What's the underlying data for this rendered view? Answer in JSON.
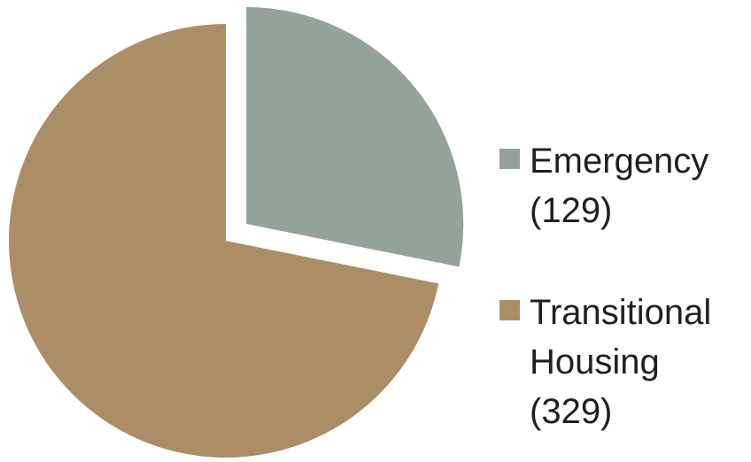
{
  "chart_data": {
    "type": "pie",
    "categories": [
      "Emergency",
      "Transitional Housing"
    ],
    "values": [
      129,
      329
    ],
    "value_labels": [
      "(129)",
      "(329)"
    ],
    "colors": [
      "#94a39a",
      "#ac8e66"
    ],
    "explode": [
      true,
      false
    ]
  }
}
